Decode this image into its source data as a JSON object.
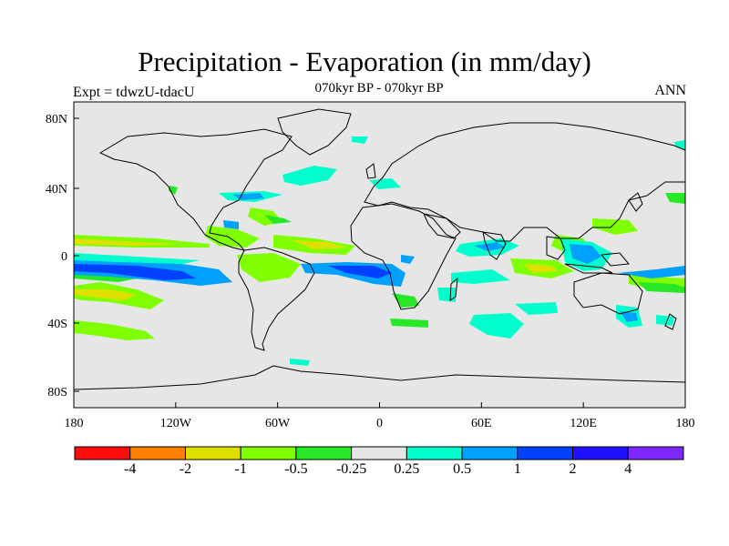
{
  "title": "Precipitation - Evaporation (in mm/day)",
  "subtitle": "070kyr BP - 070kyr BP",
  "left_label": "Expt = tdwzU-tdacU",
  "right_label": "ANN",
  "axes": {
    "x_ticks": [
      "180",
      "120W",
      "60W",
      "0",
      "60E",
      "120E",
      "180"
    ],
    "y_ticks": [
      "80N",
      "40N",
      "0",
      "40S",
      "80S"
    ]
  },
  "colorbar": {
    "colors": [
      "#ff0d0d",
      "#ff8000",
      "#e0e000",
      "#80ff00",
      "#26e826",
      "#e6e6e6",
      "#00ffcc",
      "#00a0ff",
      "#0040ff",
      "#2010ff",
      "#7c28ff"
    ],
    "labels": [
      "-4",
      "-2",
      "-1",
      "-0.5",
      "-0.25",
      "0.25",
      "0.5",
      "1",
      "2",
      "4"
    ]
  },
  "colors": {
    "ocean_land_background": "#e6e6e6",
    "coastline": "#000000"
  }
}
